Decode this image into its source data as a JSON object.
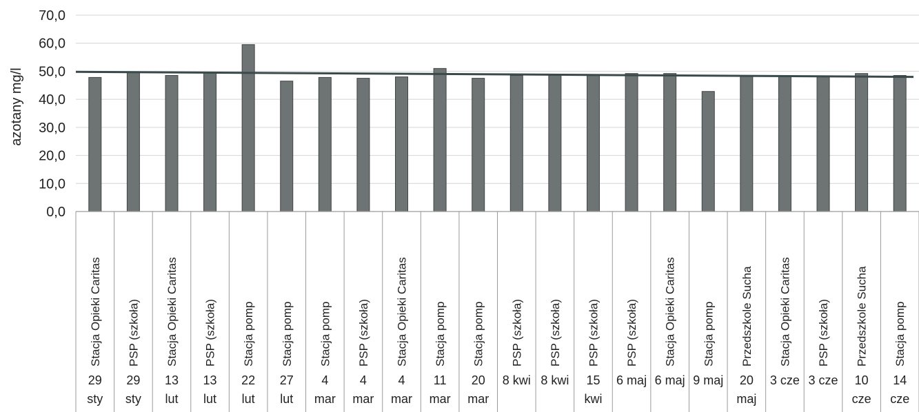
{
  "chart_data": {
    "type": "bar",
    "ylabel": "azotany mg/l",
    "ylim": [
      0,
      70
    ],
    "ytick_step": 10,
    "ytick_labels": [
      "0,0",
      "10,0",
      "20,0",
      "30,0",
      "40,0",
      "50,0",
      "60,0",
      "70,0"
    ],
    "grid": true,
    "categories": [
      {
        "location": "Stacja Opieki Caritas",
        "date": [
          "29",
          "sty"
        ]
      },
      {
        "location": "PSP (szkoła)",
        "date": [
          "29",
          "sty"
        ]
      },
      {
        "location": "Stacja Opieki Caritas",
        "date": [
          "13",
          "lut"
        ]
      },
      {
        "location": "PSP (szkoła)",
        "date": [
          "13",
          "lut"
        ]
      },
      {
        "location": "Stacja pomp",
        "date": [
          "22",
          "lut"
        ]
      },
      {
        "location": "Stacja pomp",
        "date": [
          "27",
          "lut"
        ]
      },
      {
        "location": "Stacja pomp",
        "date": [
          "4",
          "mar"
        ]
      },
      {
        "location": "PSP (szkoła)",
        "date": [
          "4",
          "mar"
        ]
      },
      {
        "location": "Stacja Opieki Caritas",
        "date": [
          "4",
          "mar"
        ]
      },
      {
        "location": "Stacja pomp",
        "date": [
          "11",
          "mar"
        ]
      },
      {
        "location": "Stacja pomp",
        "date": [
          "20",
          "mar"
        ]
      },
      {
        "location": "PSP (szkoła)",
        "date": [
          "8 kwi"
        ]
      },
      {
        "location": "PSP (szkoła)",
        "date": [
          "8 kwi"
        ]
      },
      {
        "location": "PSP (szkoła)",
        "date": [
          "15",
          "kwi"
        ]
      },
      {
        "location": "PSP (szkoła)",
        "date": [
          "6 maj"
        ]
      },
      {
        "location": "Stacja Opieki Caritas",
        "date": [
          "6 maj"
        ]
      },
      {
        "location": "Stacja pomp",
        "date": [
          "9 maj"
        ]
      },
      {
        "location": "Przedszkole Sucha",
        "date": [
          "20",
          "maj"
        ]
      },
      {
        "location": "Stacja Opieki Caritas",
        "date": [
          "3 cze"
        ]
      },
      {
        "location": "PSP (szkoła)",
        "date": [
          "3 cze"
        ]
      },
      {
        "location": "Przedszkole Sucha",
        "date": [
          "10",
          "cze"
        ]
      },
      {
        "location": "Stacja pomp",
        "date": [
          "14",
          "cze"
        ]
      }
    ],
    "values": [
      47.8,
      49.8,
      48.5,
      49.5,
      59.5,
      46.5,
      47.8,
      47.5,
      48.0,
      51.0,
      47.5,
      48.5,
      48.5,
      48.5,
      49.2,
      49.2,
      42.8,
      48.5,
      48.2,
      48.0,
      49.2,
      48.5
    ],
    "reference_line": {
      "from": 49.8,
      "to": 48.0,
      "color": "#3a4a4a"
    },
    "bar_color": "#6e7373",
    "bar_edge_color": "#3f4444"
  }
}
